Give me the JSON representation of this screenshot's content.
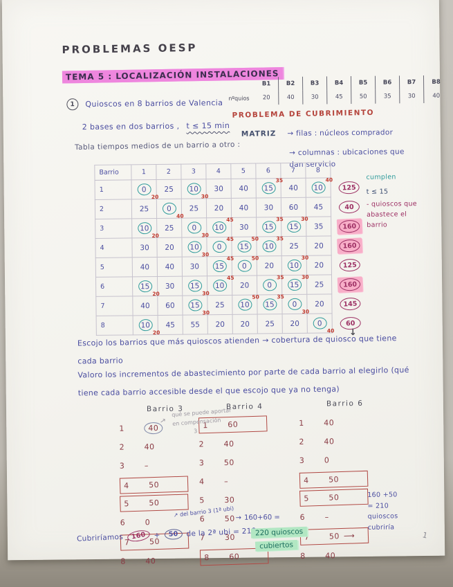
{
  "page": {
    "title": "PROBLEMAS OESP",
    "page_number": "1"
  },
  "topic": {
    "label": "TEMA 5 : LOCALIZACIÓN INSTALACIONES"
  },
  "kiosk_table": {
    "row_label": "nºquios",
    "headers": [
      "B1",
      "B2",
      "B3",
      "B4",
      "B5",
      "B6",
      "B7",
      "B8"
    ],
    "values": [
      "20",
      "40",
      "30",
      "45",
      "50",
      "35",
      "30",
      "40"
    ]
  },
  "problem": {
    "number": "1",
    "statement": "Quioscos en 8 barrios de Valencia",
    "condition": "2 bases en dos barrios ,",
    "condition_time": "t ≤ 15 min",
    "type_label": "PROBLEMA DE CUBRIMIENTO",
    "matrix_label": "MATRIZ",
    "matrix_rows_note": "→ filas : núcleos comprador",
    "matrix_cols_note": "→ columnas : ubicaciones que dan servicio",
    "table_caption": "Tabla tiempos medios de un barrio a otro :"
  },
  "matrix": {
    "corner_label": "Barrio",
    "col_headers": [
      "1",
      "2",
      "3",
      "4",
      "5",
      "6",
      "7",
      "8"
    ],
    "rows": [
      {
        "label": "1",
        "cells": [
          {
            "v": "0",
            "c": true,
            "m": "20",
            "p": "sub"
          },
          {
            "v": "25"
          },
          {
            "v": "10",
            "c": true,
            "m": "30",
            "p": "sub"
          },
          {
            "v": "30"
          },
          {
            "v": "40"
          },
          {
            "v": "15",
            "c": true,
            "m": "35",
            "p": "sup"
          },
          {
            "v": "40"
          },
          {
            "v": "10",
            "c": true,
            "m": "40",
            "p": "sup"
          }
        ],
        "total": "125",
        "hl": false
      },
      {
        "label": "2",
        "cells": [
          {
            "v": "25"
          },
          {
            "v": "0",
            "c": true,
            "m": "40",
            "p": "sub"
          },
          {
            "v": "25"
          },
          {
            "v": "20"
          },
          {
            "v": "40"
          },
          {
            "v": "30"
          },
          {
            "v": "60"
          },
          {
            "v": "45"
          }
        ],
        "total": "40",
        "hl": false
      },
      {
        "label": "3",
        "cells": [
          {
            "v": "10",
            "c": true,
            "m": "20",
            "p": "sub"
          },
          {
            "v": "25"
          },
          {
            "v": "0",
            "c": true,
            "m": "30",
            "p": "sub"
          },
          {
            "v": "10",
            "c": true,
            "m": "45",
            "p": "sup"
          },
          {
            "v": "30"
          },
          {
            "v": "15",
            "c": true,
            "m": "35",
            "p": "sup"
          },
          {
            "v": "15",
            "c": true,
            "m": "30",
            "p": "sup"
          },
          {
            "v": "35"
          }
        ],
        "total": "160",
        "hl": true
      },
      {
        "label": "4",
        "cells": [
          {
            "v": "30"
          },
          {
            "v": "20"
          },
          {
            "v": "10",
            "c": true,
            "m": "30",
            "p": "sub"
          },
          {
            "v": "0",
            "c": true,
            "m": "45",
            "p": "sup"
          },
          {
            "v": "15",
            "c": true,
            "m": "50",
            "p": "sup"
          },
          {
            "v": "10",
            "c": true,
            "m": "35",
            "p": "sup"
          },
          {
            "v": "25"
          },
          {
            "v": "20"
          }
        ],
        "total": "160",
        "hl": true
      },
      {
        "label": "5",
        "cells": [
          {
            "v": "40"
          },
          {
            "v": "40"
          },
          {
            "v": "30"
          },
          {
            "v": "15",
            "c": true,
            "m": "45",
            "p": "sup"
          },
          {
            "v": "0",
            "c": true,
            "m": "50",
            "p": "sup"
          },
          {
            "v": "20"
          },
          {
            "v": "10",
            "c": true,
            "m": "30",
            "p": "sup"
          },
          {
            "v": "20"
          }
        ],
        "total": "125",
        "hl": false
      },
      {
        "label": "6",
        "cells": [
          {
            "v": "15",
            "c": true,
            "m": "20",
            "p": "sub"
          },
          {
            "v": "30"
          },
          {
            "v": "15",
            "c": true,
            "m": "30",
            "p": "sub"
          },
          {
            "v": "10",
            "c": true,
            "m": "45",
            "p": "sup"
          },
          {
            "v": "20"
          },
          {
            "v": "0",
            "c": true,
            "m": "35",
            "p": "sup"
          },
          {
            "v": "15",
            "c": true,
            "m": "30",
            "p": "sup"
          },
          {
            "v": "25"
          }
        ],
        "total": "160",
        "hl": true
      },
      {
        "label": "7",
        "cells": [
          {
            "v": "40"
          },
          {
            "v": "60"
          },
          {
            "v": "15",
            "c": true,
            "m": "30",
            "p": "sub"
          },
          {
            "v": "25"
          },
          {
            "v": "10",
            "c": true,
            "m": "50",
            "p": "sup"
          },
          {
            "v": "15",
            "c": true,
            "m": "35",
            "p": "sup"
          },
          {
            "v": "0",
            "c": true,
            "m": "30",
            "p": "sub"
          },
          {
            "v": "20"
          }
        ],
        "total": "145",
        "hl": false
      },
      {
        "label": "8",
        "cells": [
          {
            "v": "10",
            "c": true,
            "m": "20",
            "p": "sub"
          },
          {
            "v": "45"
          },
          {
            "v": "55"
          },
          {
            "v": "20"
          },
          {
            "v": "20"
          },
          {
            "v": "25"
          },
          {
            "v": "20"
          },
          {
            "v": "0",
            "c": true,
            "m": "40",
            "p": "sub"
          }
        ],
        "total": "60",
        "hl": false,
        "arrow": true
      }
    ]
  },
  "margin_note": {
    "line1": "cumplen",
    "line2": "t ≤ 15",
    "line3": "- quioscos que abastece el barrio"
  },
  "analysis": {
    "para1": "Escojo los barrios que más quioscos atienden → cobertura de quiosco que tiene cada barrio",
    "para2": "Valoro los incrementos de abastecimiento por parte de cada barrio al elegirlo (qué tiene cada barrio accesible desde el que escojo que ya no tenga)"
  },
  "increments": {
    "columns": [
      {
        "title": "Barrio 3",
        "rows": [
          {
            "n": "1",
            "v": "40",
            "circ": true
          },
          {
            "n": "2",
            "v": "40"
          },
          {
            "n": "3",
            "v": "–"
          },
          {
            "n": "4",
            "v": "50",
            "box": true
          },
          {
            "n": "5",
            "v": "50",
            "box": true
          },
          {
            "n": "6",
            "v": "0"
          },
          {
            "n": "7",
            "v": "50",
            "box": true
          },
          {
            "n": "8",
            "v": "40"
          }
        ]
      },
      {
        "title": "Barrio 4",
        "rows": [
          {
            "n": "1",
            "v": "60",
            "box": true
          },
          {
            "n": "2",
            "v": "40"
          },
          {
            "n": "3",
            "v": "50"
          },
          {
            "n": "4",
            "v": "–"
          },
          {
            "n": "5",
            "v": "30"
          },
          {
            "n": "6",
            "v": "50"
          },
          {
            "n": "7",
            "v": "30"
          },
          {
            "n": "8",
            "v": "60",
            "box": true
          }
        ]
      },
      {
        "title": "Barrio 6",
        "rows": [
          {
            "n": "1",
            "v": "40"
          },
          {
            "n": "2",
            "v": "40"
          },
          {
            "n": "3",
            "v": "0"
          },
          {
            "n": "4",
            "v": "50",
            "box": true
          },
          {
            "n": "5",
            "v": "50",
            "box": true
          },
          {
            "n": "6",
            "v": "–"
          },
          {
            "n": "7",
            "v": "50",
            "box": true,
            "arrow": true
          },
          {
            "n": "8",
            "v": "40"
          }
        ]
      }
    ],
    "pencil_note_l1": "qué se puede aportar",
    "pencil_note_l2": "en compensación",
    "pencil_note_l3": "3",
    "row8_note": "del barrio 3 (1ª ubi)",
    "cubre_prefix": "Cubriríamos",
    "cubre_v1": "160",
    "cubre_plus": "+",
    "cubre_v2": "50",
    "cubre_suffix": "de la 2ª ubi = 210",
    "sum_b4": "160+60 =",
    "green_line1": "220 quioscos",
    "green_line2": "cubiertos",
    "b6_note_l1": "160 +50",
    "b6_note_l2": "= 210",
    "b6_note_l3": "quioscos",
    "b6_note_l4": "cubriría"
  }
}
